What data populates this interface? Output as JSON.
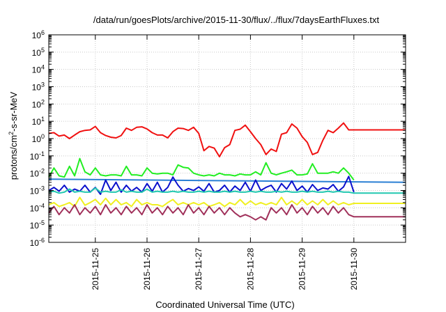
{
  "chart_data": {
    "type": "line",
    "title": "/data/run/goesPlots/archive/2015-11-30/flux/../flux/7daysEarthFluxes.txt",
    "xlabel": "Coordinated Universal Time (UTC)",
    "ylabel_parts": {
      "base": "protons/cm",
      "sup": "2",
      "rest": "-s-sr-MeV"
    },
    "yscale": "log",
    "ylim_exp": [
      -6,
      6
    ],
    "ytick_exponents": [
      -6,
      -5,
      -4,
      -3,
      -2,
      -1,
      0,
      1,
      2,
      3,
      4,
      5,
      6
    ],
    "ytick_base": "10",
    "xlim_days": [
      24.1,
      31.0
    ],
    "xticks": [
      {
        "day": 25,
        "label": "2015-11-25"
      },
      {
        "day": 26,
        "label": "2015-11-26"
      },
      {
        "day": 27,
        "label": "2015-11-27"
      },
      {
        "day": 28,
        "label": "2015-11-28"
      },
      {
        "day": 29,
        "label": "2015-11-29"
      },
      {
        "day": 30,
        "label": "2015-11-30"
      }
    ],
    "grid": true,
    "series": [
      {
        "color": "#f01010",
        "x": [
          24.1,
          24.2,
          24.3,
          24.4,
          24.5,
          24.6,
          24.7,
          24.8,
          24.9,
          25.0,
          25.1,
          25.2,
          25.3,
          25.4,
          25.5,
          25.6,
          25.7,
          25.8,
          25.9,
          26.0,
          26.1,
          26.2,
          26.3,
          26.4,
          26.5,
          26.6,
          26.7,
          26.8,
          26.9,
          27.0,
          27.1,
          27.2,
          27.3,
          27.4,
          27.5,
          27.6,
          27.7,
          27.8,
          27.9,
          28.0,
          28.1,
          28.2,
          28.3,
          28.4,
          28.5,
          28.6,
          28.7,
          28.8,
          28.9,
          29.0,
          29.1,
          29.2,
          29.3,
          29.4,
          29.5,
          29.6,
          29.7,
          29.8,
          29.9,
          30.0,
          31.0
        ],
        "y": [
          2.0,
          2.2,
          1.4,
          1.6,
          1.0,
          1.6,
          2.5,
          3.0,
          3.2,
          5.0,
          2.2,
          1.5,
          1.2,
          1.1,
          1.5,
          4.0,
          3.0,
          4.5,
          4.8,
          3.6,
          2.2,
          1.6,
          1.6,
          1.1,
          2.5,
          4.0,
          3.8,
          3.0,
          4.5,
          2.0,
          0.2,
          0.35,
          0.28,
          0.09,
          0.3,
          0.45,
          3.0,
          3.5,
          6.0,
          2.5,
          1.0,
          0.45,
          0.12,
          0.25,
          0.18,
          1.8,
          2.2,
          7.0,
          4.0,
          1.3,
          0.6,
          0.12,
          0.16,
          0.8,
          3.0,
          2.2,
          4.0,
          8.0,
          3.2,
          3.2,
          3.2
        ]
      },
      {
        "color": "#22ee22",
        "x": [
          24.1,
          24.2,
          24.3,
          24.4,
          24.5,
          24.6,
          24.7,
          24.8,
          24.9,
          25.0,
          25.1,
          25.2,
          25.3,
          25.4,
          25.5,
          25.6,
          25.7,
          25.8,
          25.9,
          26.0,
          26.1,
          26.2,
          26.3,
          26.4,
          26.5,
          26.6,
          26.7,
          26.8,
          26.9,
          27.0,
          27.1,
          27.2,
          27.3,
          27.4,
          27.5,
          27.6,
          27.7,
          27.8,
          27.9,
          28.0,
          28.1,
          28.2,
          28.3,
          28.4,
          28.5,
          28.6,
          28.7,
          28.8,
          28.9,
          29.0,
          29.1,
          29.2,
          29.3,
          29.4,
          29.5,
          29.6,
          29.7,
          29.8,
          29.9,
          30.0
        ],
        "y": [
          0.006,
          0.02,
          0.007,
          0.006,
          0.025,
          0.007,
          0.07,
          0.012,
          0.008,
          0.02,
          0.008,
          0.007,
          0.008,
          0.008,
          0.007,
          0.025,
          0.008,
          0.008,
          0.007,
          0.02,
          0.01,
          0.009,
          0.01,
          0.01,
          0.008,
          0.03,
          0.022,
          0.02,
          0.01,
          0.008,
          0.007,
          0.008,
          0.007,
          0.01,
          0.008,
          0.008,
          0.007,
          0.009,
          0.008,
          0.008,
          0.012,
          0.008,
          0.04,
          0.01,
          0.008,
          0.01,
          0.012,
          0.015,
          0.008,
          0.008,
          0.009,
          0.035,
          0.01,
          0.01,
          0.01,
          0.012,
          0.01,
          0.02,
          0.01,
          0.004
        ]
      },
      {
        "color": "#2a7fd4",
        "x": [
          24.1,
          31.0
        ],
        "y": [
          0.0045,
          0.003
        ]
      },
      {
        "color": "#0a10cc",
        "x": [
          24.1,
          24.2,
          24.3,
          24.4,
          24.5,
          24.6,
          24.7,
          24.8,
          24.9,
          25.0,
          25.1,
          25.2,
          25.3,
          25.4,
          25.5,
          25.6,
          25.7,
          25.8,
          25.9,
          26.0,
          26.1,
          26.2,
          26.3,
          26.4,
          26.5,
          26.6,
          26.7,
          26.8,
          26.9,
          27.0,
          27.1,
          27.2,
          27.3,
          27.4,
          27.5,
          27.6,
          27.7,
          27.8,
          27.9,
          28.0,
          28.1,
          28.2,
          28.3,
          28.4,
          28.5,
          28.6,
          28.7,
          28.8,
          28.9,
          29.0,
          29.1,
          29.2,
          29.3,
          29.4,
          29.5,
          29.6,
          29.7,
          29.8,
          29.9,
          30.0
        ],
        "y": [
          0.001,
          0.0015,
          0.0009,
          0.002,
          0.0008,
          0.0012,
          0.0009,
          0.002,
          0.0008,
          0.0015,
          0.0006,
          0.004,
          0.001,
          0.003,
          0.0008,
          0.002,
          0.0009,
          0.0015,
          0.0008,
          0.0025,
          0.0009,
          0.003,
          0.0008,
          0.0015,
          0.006,
          0.002,
          0.0009,
          0.0013,
          0.001,
          0.0016,
          0.0009,
          0.0025,
          0.0008,
          0.001,
          0.002,
          0.0008,
          0.0018,
          0.001,
          0.003,
          0.0009,
          0.004,
          0.001,
          0.0015,
          0.002,
          0.0008,
          0.0025,
          0.0012,
          0.0035,
          0.001,
          0.0018,
          0.0008,
          0.0022,
          0.001,
          0.0014,
          0.0012,
          0.0022,
          0.0009,
          0.0016,
          0.0065,
          0.0008
        ]
      },
      {
        "color": "#22c8b0",
        "x": [
          24.1,
          24.2,
          24.3,
          24.4,
          24.5,
          24.6,
          24.7,
          24.8,
          24.9,
          25.0,
          25.1,
          25.2,
          25.3,
          25.4,
          25.5,
          25.6,
          25.7,
          25.8,
          25.9,
          26.0,
          26.1,
          26.2,
          26.3,
          26.4,
          26.5,
          26.6,
          26.7,
          26.8,
          26.9,
          27.0,
          27.1,
          27.2,
          27.3,
          27.4,
          27.5,
          27.6,
          27.7,
          27.8,
          27.9,
          28.0,
          28.1,
          28.2,
          28.3,
          28.4,
          28.5,
          28.6,
          28.7,
          28.8,
          28.9,
          29.0,
          29.1,
          29.2,
          29.3,
          29.4,
          29.5,
          29.6,
          29.7,
          29.8,
          29.9,
          30.0,
          31.0
        ],
        "y": [
          0.0008,
          0.0009,
          0.0007,
          0.0008,
          0.0012,
          0.0008,
          0.0009,
          0.0008,
          0.0008,
          0.0014,
          0.0008,
          0.0009,
          0.0008,
          0.0008,
          0.0011,
          0.0008,
          0.0009,
          0.0008,
          0.0008,
          0.0012,
          0.0008,
          0.0009,
          0.0008,
          0.0008,
          0.0009,
          0.0008,
          0.0009,
          0.0008,
          0.0008,
          0.0009,
          0.0008,
          0.0009,
          0.0008,
          0.0008,
          0.0009,
          0.0008,
          0.0009,
          0.0008,
          0.0008,
          0.0009,
          0.0008,
          0.0009,
          0.0008,
          0.0008,
          0.0009,
          0.0008,
          0.0009,
          0.0008,
          0.0008,
          0.0009,
          0.0008,
          0.0009,
          0.0008,
          0.0008,
          0.0009,
          0.0008,
          0.0009,
          0.0008,
          0.0008,
          0.0007,
          0.0007
        ]
      },
      {
        "color": "#f0f020",
        "x": [
          24.1,
          24.2,
          24.3,
          24.4,
          24.5,
          24.6,
          24.7,
          24.8,
          24.9,
          25.0,
          25.1,
          25.2,
          25.3,
          25.4,
          25.5,
          25.6,
          25.7,
          25.8,
          25.9,
          26.0,
          26.1,
          26.2,
          26.3,
          26.4,
          26.5,
          26.6,
          26.7,
          26.8,
          26.9,
          27.0,
          27.1,
          27.2,
          27.3,
          27.4,
          27.5,
          27.6,
          27.7,
          27.8,
          27.9,
          28.0,
          28.1,
          28.2,
          28.3,
          28.4,
          28.5,
          28.6,
          28.7,
          28.8,
          28.9,
          29.0,
          29.1,
          29.2,
          29.3,
          29.4,
          29.5,
          29.6,
          29.7,
          29.8,
          29.9,
          30.0,
          31.0
        ],
        "y": [
          0.00015,
          0.0002,
          0.00012,
          0.00015,
          0.0002,
          0.00012,
          0.0004,
          0.00014,
          0.0002,
          0.0003,
          0.00015,
          0.00035,
          0.00015,
          0.0003,
          0.00015,
          0.0002,
          0.00012,
          0.0003,
          0.00015,
          0.0002,
          0.00015,
          0.00015,
          0.00012,
          0.0002,
          0.0003,
          0.00015,
          0.0002,
          0.00015,
          0.0002,
          0.00015,
          0.0002,
          0.00012,
          0.00015,
          0.0002,
          0.00012,
          0.0002,
          0.00015,
          0.0003,
          0.00015,
          0.00025,
          0.00015,
          0.0002,
          0.00015,
          0.0002,
          0.00015,
          0.0004,
          0.00015,
          0.00025,
          0.00015,
          0.0003,
          0.00015,
          0.00025,
          0.00015,
          0.0003,
          0.00015,
          0.00025,
          0.00015,
          0.0002,
          0.00015,
          0.00018,
          0.00018
        ]
      },
      {
        "color": "#a0305a",
        "x": [
          24.1,
          24.2,
          24.3,
          24.4,
          24.5,
          24.6,
          24.7,
          24.8,
          24.9,
          25.0,
          25.1,
          25.2,
          25.3,
          25.4,
          25.5,
          25.6,
          25.7,
          25.8,
          25.9,
          26.0,
          26.1,
          26.2,
          26.3,
          26.4,
          26.5,
          26.6,
          26.7,
          26.8,
          26.9,
          27.0,
          27.1,
          27.2,
          27.3,
          27.4,
          27.5,
          27.6,
          27.7,
          27.8,
          27.9,
          28.0,
          28.1,
          28.2,
          28.3,
          28.4,
          28.5,
          28.6,
          28.7,
          28.8,
          28.9,
          29.0,
          29.1,
          29.2,
          29.3,
          29.4,
          29.5,
          29.6,
          29.7,
          29.8,
          29.9,
          30.0,
          31.0
        ],
        "y": [
          5e-05,
          0.00012,
          4e-05,
          0.0001,
          5e-05,
          0.00015,
          4e-05,
          0.0001,
          5e-05,
          0.00012,
          4e-05,
          0.00015,
          5e-05,
          0.0001,
          4e-05,
          0.00012,
          5e-05,
          0.0001,
          4e-05,
          0.00015,
          5e-05,
          0.0001,
          4e-05,
          0.00012,
          5e-05,
          0.0001,
          4e-05,
          0.00015,
          5e-05,
          0.0001,
          4e-05,
          0.00012,
          5e-05,
          0.0001,
          4e-05,
          0.0001,
          5e-05,
          3e-05,
          4e-05,
          3e-05,
          2e-05,
          3e-05,
          2e-05,
          0.0001,
          5e-05,
          0.0001,
          4e-05,
          0.00015,
          5e-05,
          0.0001,
          4e-05,
          0.00012,
          5e-05,
          0.0001,
          4e-05,
          0.00012,
          5e-05,
          0.0001,
          4e-05,
          3e-05,
          3e-05
        ]
      }
    ]
  }
}
